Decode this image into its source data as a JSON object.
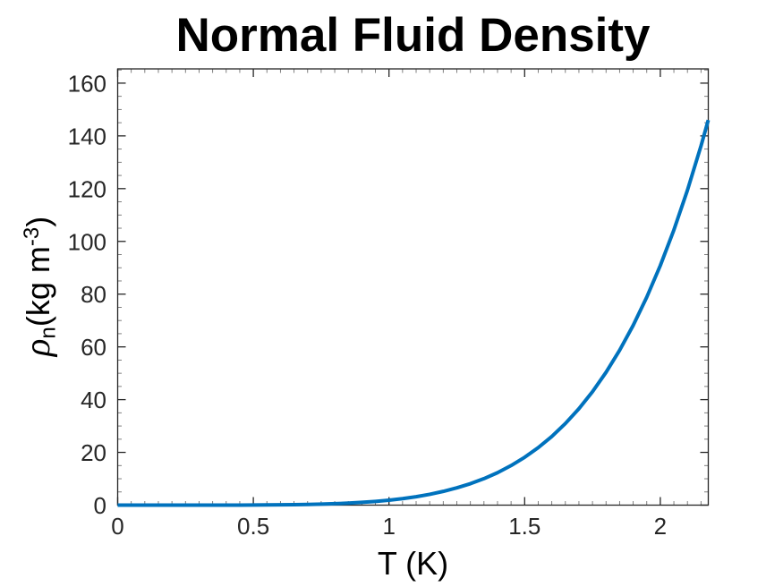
{
  "chart_data": {
    "type": "line",
    "title": "Normal Fluid Density",
    "xlabel": "T (K)",
    "ylabel": "rho_n (kg m^-3)",
    "ylabel_parts": {
      "symbol": "ρ",
      "subscript": "n",
      "unit_open": "(kg m",
      "unit_exponent": "-3",
      "unit_close": ")"
    },
    "xlim": [
      0,
      2.1768
    ],
    "ylim": [
      0,
      165.4
    ],
    "xticks": [
      {
        "value": 0,
        "label": "0"
      },
      {
        "value": 0.5,
        "label": "0.5"
      },
      {
        "value": 1,
        "label": "1"
      },
      {
        "value": 1.5,
        "label": "1.5"
      },
      {
        "value": 2,
        "label": "2"
      }
    ],
    "yticks": [
      {
        "value": 0,
        "label": "0"
      },
      {
        "value": 20,
        "label": "20"
      },
      {
        "value": 40,
        "label": "40"
      },
      {
        "value": 60,
        "label": "60"
      },
      {
        "value": 80,
        "label": "80"
      },
      {
        "value": 100,
        "label": "100"
      },
      {
        "value": 120,
        "label": "120"
      },
      {
        "value": 140,
        "label": "140"
      },
      {
        "value": 160,
        "label": "160"
      }
    ],
    "x_minor_step": 0.05,
    "y_minor_step": 5,
    "grid": false,
    "legend": false,
    "box_on": true,
    "colors": {
      "line": "#0072BD",
      "axis": "#262626",
      "tick_label": "#262626",
      "text": "#000000",
      "background": "#ffffff"
    },
    "series": [
      {
        "name": "normal-fluid-density",
        "points": [
          [
            0,
            0
          ],
          [
            0.05,
            0
          ],
          [
            0.1,
            0
          ],
          [
            0.15,
            0
          ],
          [
            0.2,
            0.0002
          ],
          [
            0.25,
            0.0008
          ],
          [
            0.3,
            0.0022
          ],
          [
            0.35,
            0.0053
          ],
          [
            0.4,
            0.011
          ],
          [
            0.45,
            0.021
          ],
          [
            0.5,
            0.039
          ],
          [
            0.55,
            0.066
          ],
          [
            0.6,
            0.107
          ],
          [
            0.65,
            0.168
          ],
          [
            0.7,
            0.254
          ],
          [
            0.75,
            0.374
          ],
          [
            0.8,
            0.537
          ],
          [
            0.85,
            0.755
          ],
          [
            0.9,
            1.04
          ],
          [
            0.95,
            1.41
          ],
          [
            1.0,
            1.87
          ],
          [
            1.05,
            2.46
          ],
          [
            1.1,
            3.19
          ],
          [
            1.15,
            4.1
          ],
          [
            1.2,
            5.21
          ],
          [
            1.25,
            6.54
          ],
          [
            1.3,
            8.13
          ],
          [
            1.35,
            10.04
          ],
          [
            1.4,
            12.3
          ],
          [
            1.45,
            15.0
          ],
          [
            1.5,
            18.14
          ],
          [
            1.55,
            21.8
          ],
          [
            1.6,
            26.03
          ],
          [
            1.65,
            30.94
          ],
          [
            1.7,
            36.56
          ],
          [
            1.75,
            43.01
          ],
          [
            1.8,
            50.36
          ],
          [
            1.85,
            58.71
          ],
          [
            1.9,
            68.16
          ],
          [
            1.95,
            78.84
          ],
          [
            2.0,
            90.85
          ],
          [
            2.05,
            104.32
          ],
          [
            2.1,
            119.41
          ],
          [
            2.15,
            136.21
          ],
          [
            2.1768,
            146.0
          ]
        ]
      }
    ]
  }
}
